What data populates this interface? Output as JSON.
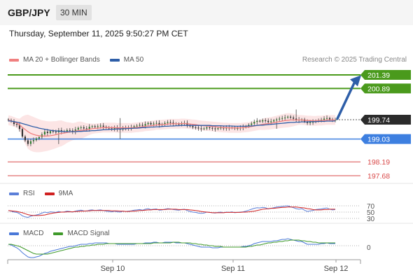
{
  "header": {
    "symbol": "GBP/JPY",
    "timeframe": "30 MIN"
  },
  "datetime": "Thursday, September 11, 2025 9:50:27 PM CET",
  "legend": {
    "ma20_label": "MA 20 + Bollinger Bands",
    "ma50_label": "MA 50",
    "credit": "Research © 2025 Trading Central"
  },
  "colors": {
    "resistance": "#4a9a1c",
    "support": "#3d7fe0",
    "level_red": "#d94a4a",
    "ma20": "#f08080",
    "ma50": "#2e5ea8",
    "bollinger_fill": "#fbdcdc",
    "last_price": "#2b2b2b",
    "rsi": "#5b7fd8",
    "rsi_ma": "#d02020",
    "macd": "#4a78d8",
    "macd_signal": "#3f9a2a",
    "arrow": "#2e5ea8"
  },
  "rsi_panel": {
    "label": "RSI",
    "ma_label": "9MA",
    "levels": [
      "70",
      "50",
      "30"
    ]
  },
  "macd_panel": {
    "label": "MACD",
    "signal_label": "MACD Signal",
    "zero_label": "0"
  },
  "chart_data": {
    "type": "candlestick",
    "symbol": "GBP/JPY",
    "interval": "30 MIN",
    "x_ticks": [
      "Sep 10",
      "Sep 11",
      "Sep 12"
    ],
    "levels": [
      {
        "value": 201.39,
        "label": "201.39",
        "kind": "resistance"
      },
      {
        "value": 200.89,
        "label": "200.89",
        "kind": "resistance"
      },
      {
        "value": 199.74,
        "label": "199.74",
        "kind": "last"
      },
      {
        "value": 199.03,
        "label": "199.03",
        "kind": "support"
      },
      {
        "value": 198.19,
        "label": "198.19",
        "kind": "minor"
      },
      {
        "value": 197.68,
        "label": "197.68",
        "kind": "minor"
      }
    ],
    "y_range": [
      197.5,
      201.6
    ],
    "close": [
      199.72,
      199.69,
      199.58,
      199.55,
      199.4,
      199.12,
      198.98,
      198.85,
      198.95,
      198.99,
      199.05,
      199.1,
      199.2,
      199.3,
      199.25,
      199.32,
      199.3,
      199.28,
      199.35,
      199.3,
      199.32,
      199.36,
      199.34,
      199.3,
      199.38,
      199.44,
      199.46,
      199.42,
      199.4,
      199.48,
      199.5,
      199.47,
      199.5,
      199.52,
      199.48,
      199.45,
      199.42,
      199.4,
      199.44,
      199.4,
      199.38,
      199.45,
      199.42,
      199.44,
      199.46,
      199.5,
      199.52,
      199.55,
      199.52,
      199.58,
      199.62,
      199.57,
      199.6,
      199.62,
      199.55,
      199.58,
      199.62,
      199.65,
      199.63,
      199.6,
      199.58,
      199.57,
      199.6,
      199.62,
      199.55,
      199.5,
      199.46,
      199.45,
      199.42,
      199.4,
      199.42,
      199.46,
      199.44,
      199.42,
      199.4,
      199.43,
      199.45,
      199.42,
      199.45,
      199.44,
      199.46,
      199.42,
      199.43,
      199.45,
      199.47,
      199.5,
      199.55,
      199.6,
      199.66,
      199.7,
      199.68,
      199.72,
      199.7,
      199.65,
      199.68,
      199.72,
      199.75,
      199.78,
      199.8,
      199.82,
      199.85,
      199.82,
      199.78,
      199.74,
      199.72,
      199.75,
      199.68,
      199.62,
      199.65,
      199.66,
      199.7,
      199.72,
      199.74,
      199.78,
      199.8,
      199.75,
      199.72,
      199.74
    ],
    "ma20": [
      199.72,
      199.7,
      199.66,
      199.62,
      199.55,
      199.46,
      199.38,
      199.3,
      199.24,
      199.2,
      199.17,
      199.15,
      199.14,
      199.14,
      199.14,
      199.15,
      199.17,
      199.19,
      199.22,
      199.24,
      199.25,
      199.27,
      199.29,
      199.3,
      199.32,
      199.34,
      199.35,
      199.36,
      199.37,
      199.39,
      199.41,
      199.42,
      199.43,
      199.44,
      199.45,
      199.45,
      199.45,
      199.45,
      199.45,
      199.44,
      199.44,
      199.44,
      199.44,
      199.44,
      199.44,
      199.45,
      199.46,
      199.47,
      199.48,
      199.5,
      199.51,
      199.52,
      199.53,
      199.55,
      199.55,
      199.56,
      199.57,
      199.58,
      199.59,
      199.59,
      199.59,
      199.59,
      199.6,
      199.6,
      199.59,
      199.58,
      199.57,
      199.56,
      199.54,
      199.53,
      199.52,
      199.51,
      199.5,
      199.49,
      199.48,
      199.47,
      199.46,
      199.45,
      199.45,
      199.44,
      199.44,
      199.44,
      199.44,
      199.44,
      199.45,
      199.46,
      199.47,
      199.49,
      199.51,
      199.53,
      199.55,
      199.57,
      199.59,
      199.6,
      199.61,
      199.63,
      199.65,
      199.67,
      199.69,
      199.71,
      199.72,
      199.73,
      199.73,
      199.73,
      199.73,
      199.73,
      199.72,
      199.71,
      199.71,
      199.7,
      199.7,
      199.71,
      199.71,
      199.72,
      199.73,
      199.73,
      199.73,
      199.73
    ],
    "ma50": [
      199.7,
      199.69,
      199.67,
      199.65,
      199.63,
      199.6,
      199.57,
      199.54,
      199.51,
      199.48,
      199.46,
      199.43,
      199.41,
      199.39,
      199.37,
      199.35,
      199.34,
      199.33,
      199.32,
      199.31,
      199.3,
      199.3,
      199.3,
      199.3,
      199.3,
      199.31,
      199.31,
      199.32,
      199.32,
      199.33,
      199.34,
      199.34,
      199.35,
      199.36,
      199.37,
      199.37,
      199.38,
      199.39,
      199.39,
      199.4,
      199.4,
      199.41,
      199.41,
      199.42,
      199.42,
      199.43,
      199.43,
      199.44,
      199.45,
      199.45,
      199.46,
      199.47,
      199.47,
      199.48,
      199.48,
      199.49,
      199.5,
      199.5,
      199.51,
      199.51,
      199.52,
      199.52,
      199.53,
      199.53,
      199.53,
      199.53,
      199.53,
      199.53,
      199.53,
      199.53,
      199.53,
      199.53,
      199.53,
      199.52,
      199.52,
      199.52,
      199.52,
      199.51,
      199.51,
      199.51,
      199.51,
      199.5,
      199.5,
      199.5,
      199.5,
      199.5,
      199.51,
      199.51,
      199.52,
      199.53,
      199.54,
      199.54,
      199.55,
      199.56,
      199.57,
      199.58,
      199.59,
      199.6,
      199.61,
      199.62,
      199.63,
      199.64,
      199.64,
      199.65,
      199.65,
      199.66,
      199.66,
      199.66,
      199.67,
      199.67,
      199.67,
      199.68,
      199.68,
      199.68,
      199.69,
      199.69,
      199.69,
      199.7
    ],
    "rsi": [
      55,
      53,
      50,
      49,
      45,
      38,
      35,
      33,
      37,
      39,
      41,
      43,
      47,
      50,
      48,
      51,
      50,
      49,
      52,
      50,
      51,
      53,
      52,
      50,
      53,
      55,
      56,
      54,
      53,
      56,
      57,
      55,
      56,
      57,
      55,
      53,
      52,
      51,
      53,
      51,
      50,
      53,
      52,
      53,
      54,
      56,
      57,
      58,
      56,
      59,
      61,
      58,
      59,
      60,
      56,
      57,
      59,
      61,
      60,
      58,
      57,
      56,
      58,
      59,
      55,
      52,
      50,
      49,
      47,
      46,
      47,
      50,
      49,
      48,
      47,
      49,
      50,
      48,
      50,
      49,
      51,
      48,
      49,
      50,
      51,
      53,
      56,
      59,
      62,
      64,
      63,
      65,
      64,
      60,
      62,
      64,
      66,
      67,
      68,
      69,
      70,
      67,
      64,
      61,
      59,
      61,
      56,
      52,
      54,
      55,
      58,
      59,
      60,
      62,
      63,
      59,
      57,
      58
    ],
    "rsi_ma": [
      55,
      54,
      53,
      52,
      50,
      48,
      45,
      42,
      40,
      39,
      39,
      39,
      40,
      41,
      43,
      45,
      47,
      48,
      49,
      50,
      50,
      51,
      51,
      51,
      52,
      52,
      53,
      53,
      54,
      54,
      55,
      55,
      55,
      55,
      55,
      55,
      55,
      54,
      54,
      54,
      53,
      53,
      52,
      52,
      53,
      53,
      54,
      55,
      55,
      56,
      57,
      57,
      58,
      58,
      58,
      58,
      58,
      59,
      59,
      59,
      59,
      58,
      58,
      58,
      58,
      57,
      56,
      55,
      54,
      52,
      51,
      50,
      49,
      48,
      48,
      48,
      48,
      48,
      49,
      49,
      49,
      49,
      49,
      49,
      50,
      50,
      51,
      52,
      53,
      55,
      57,
      59,
      60,
      61,
      62,
      62,
      63,
      64,
      65,
      65,
      66,
      66,
      66,
      66,
      65,
      64,
      63,
      61,
      60,
      58,
      57,
      57,
      57,
      58,
      58,
      59,
      59,
      59
    ],
    "macd": [
      0.02,
      0.01,
      -0.01,
      -0.03,
      -0.06,
      -0.1,
      -0.13,
      -0.16,
      -0.17,
      -0.17,
      -0.16,
      -0.15,
      -0.13,
      -0.11,
      -0.1,
      -0.08,
      -0.07,
      -0.06,
      -0.05,
      -0.04,
      -0.03,
      -0.02,
      -0.01,
      -0.01,
      0,
      0.01,
      0.02,
      0.02,
      0.02,
      0.03,
      0.03,
      0.04,
      0.04,
      0.04,
      0.04,
      0.04,
      0.03,
      0.03,
      0.03,
      0.02,
      0.02,
      0.02,
      0.02,
      0.02,
      0.02,
      0.02,
      0.03,
      0.03,
      0.03,
      0.04,
      0.04,
      0.04,
      0.05,
      0.05,
      0.04,
      0.04,
      0.05,
      0.05,
      0.05,
      0.05,
      0.04,
      0.04,
      0.04,
      0.04,
      0.03,
      0.02,
      0.01,
      0,
      -0.01,
      -0.02,
      -0.02,
      -0.02,
      -0.02,
      -0.03,
      -0.03,
      -0.03,
      -0.02,
      -0.02,
      -0.02,
      -0.02,
      -0.02,
      -0.02,
      -0.02,
      -0.02,
      -0.01,
      -0.01,
      0,
      0.01,
      0.03,
      0.04,
      0.05,
      0.06,
      0.06,
      0.06,
      0.06,
      0.07,
      0.07,
      0.08,
      0.09,
      0.09,
      0.1,
      0.09,
      0.08,
      0.07,
      0.06,
      0.06,
      0.04,
      0.02,
      0.02,
      0.02,
      0.02,
      0.02,
      0.03,
      0.03,
      0.04,
      0.03,
      0.03,
      0.03
    ],
    "macd_signal": [
      0.02,
      0.02,
      0.01,
      0,
      -0.01,
      -0.03,
      -0.05,
      -0.07,
      -0.09,
      -0.11,
      -0.12,
      -0.12,
      -0.12,
      -0.12,
      -0.12,
      -0.11,
      -0.1,
      -0.09,
      -0.08,
      -0.07,
      -0.06,
      -0.05,
      -0.04,
      -0.03,
      -0.02,
      -0.02,
      -0.01,
      -0.01,
      0,
      0,
      0.01,
      0.01,
      0.02,
      0.02,
      0.02,
      0.03,
      0.03,
      0.03,
      0.03,
      0.03,
      0.03,
      0.03,
      0.03,
      0.03,
      0.03,
      0.03,
      0.03,
      0.03,
      0.03,
      0.03,
      0.03,
      0.03,
      0.04,
      0.04,
      0.04,
      0.04,
      0.04,
      0.04,
      0.04,
      0.05,
      0.05,
      0.05,
      0.04,
      0.04,
      0.04,
      0.04,
      0.03,
      0.03,
      0.02,
      0.02,
      0.01,
      0.01,
      0,
      0,
      -0.01,
      -0.01,
      -0.01,
      -0.02,
      -0.02,
      -0.02,
      -0.02,
      -0.02,
      -0.02,
      -0.02,
      -0.02,
      -0.02,
      -0.01,
      -0.01,
      0,
      0.01,
      0.01,
      0.02,
      0.03,
      0.04,
      0.04,
      0.05,
      0.05,
      0.06,
      0.06,
      0.07,
      0.07,
      0.08,
      0.08,
      0.08,
      0.08,
      0.07,
      0.07,
      0.06,
      0.06,
      0.05,
      0.05,
      0.04,
      0.04,
      0.04,
      0.04,
      0.04,
      0.04,
      0.04
    ]
  }
}
